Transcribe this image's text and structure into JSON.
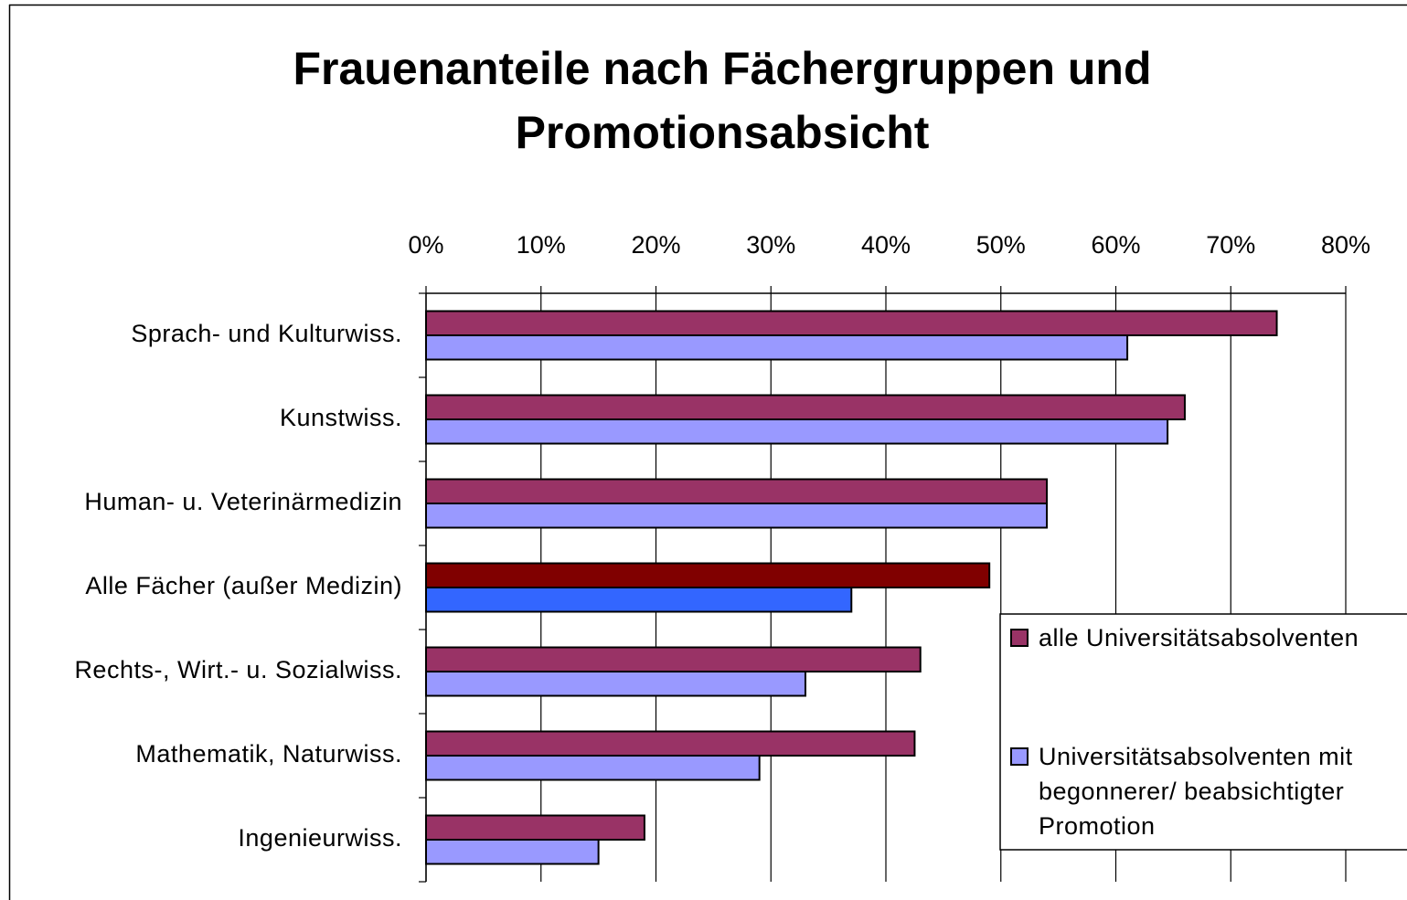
{
  "chart_data": {
    "type": "barh",
    "title": "Frauenanteile nach Fächergruppen und\nPromotionsabsicht",
    "categories": [
      "Sprach- und Kulturwiss.",
      "Kunstwiss.",
      "Human- u. Veterinärmedizin",
      "Alle Fächer (außer Medizin)",
      "Rechts-, Wirt.- u. Sozialwiss.",
      "Mathematik, Naturwiss.",
      "Ingenieurwiss."
    ],
    "series": [
      {
        "name": "alle Universitätsabsolventen",
        "color": "#993366",
        "colors": [
          "#993366",
          "#993366",
          "#993366",
          "#800000",
          "#993366",
          "#993366",
          "#993366"
        ],
        "values": [
          74,
          66,
          54,
          49,
          43,
          42.5,
          19
        ]
      },
      {
        "name": "Universitätsabsolventen mit\nbegonnerer/ beabsichtigter\nPromotion",
        "color": "#9999ff",
        "colors": [
          "#9999ff",
          "#9999ff",
          "#9999ff",
          "#3366ff",
          "#9999ff",
          "#9999ff",
          "#9999ff"
        ],
        "values": [
          61,
          64.5,
          54,
          37,
          33,
          29,
          15
        ]
      }
    ],
    "xlim": [
      0,
      80
    ],
    "xticks": [
      {
        "value": 0,
        "label": "0%"
      },
      {
        "value": 10,
        "label": "10%"
      },
      {
        "value": 20,
        "label": "20%"
      },
      {
        "value": 30,
        "label": "30%"
      },
      {
        "value": 40,
        "label": "40%"
      },
      {
        "value": 50,
        "label": "50%"
      },
      {
        "value": 60,
        "label": "60%"
      },
      {
        "value": 70,
        "label": "70%"
      },
      {
        "value": 80,
        "label": "80%"
      }
    ],
    "grid": true,
    "legend": "right"
  }
}
